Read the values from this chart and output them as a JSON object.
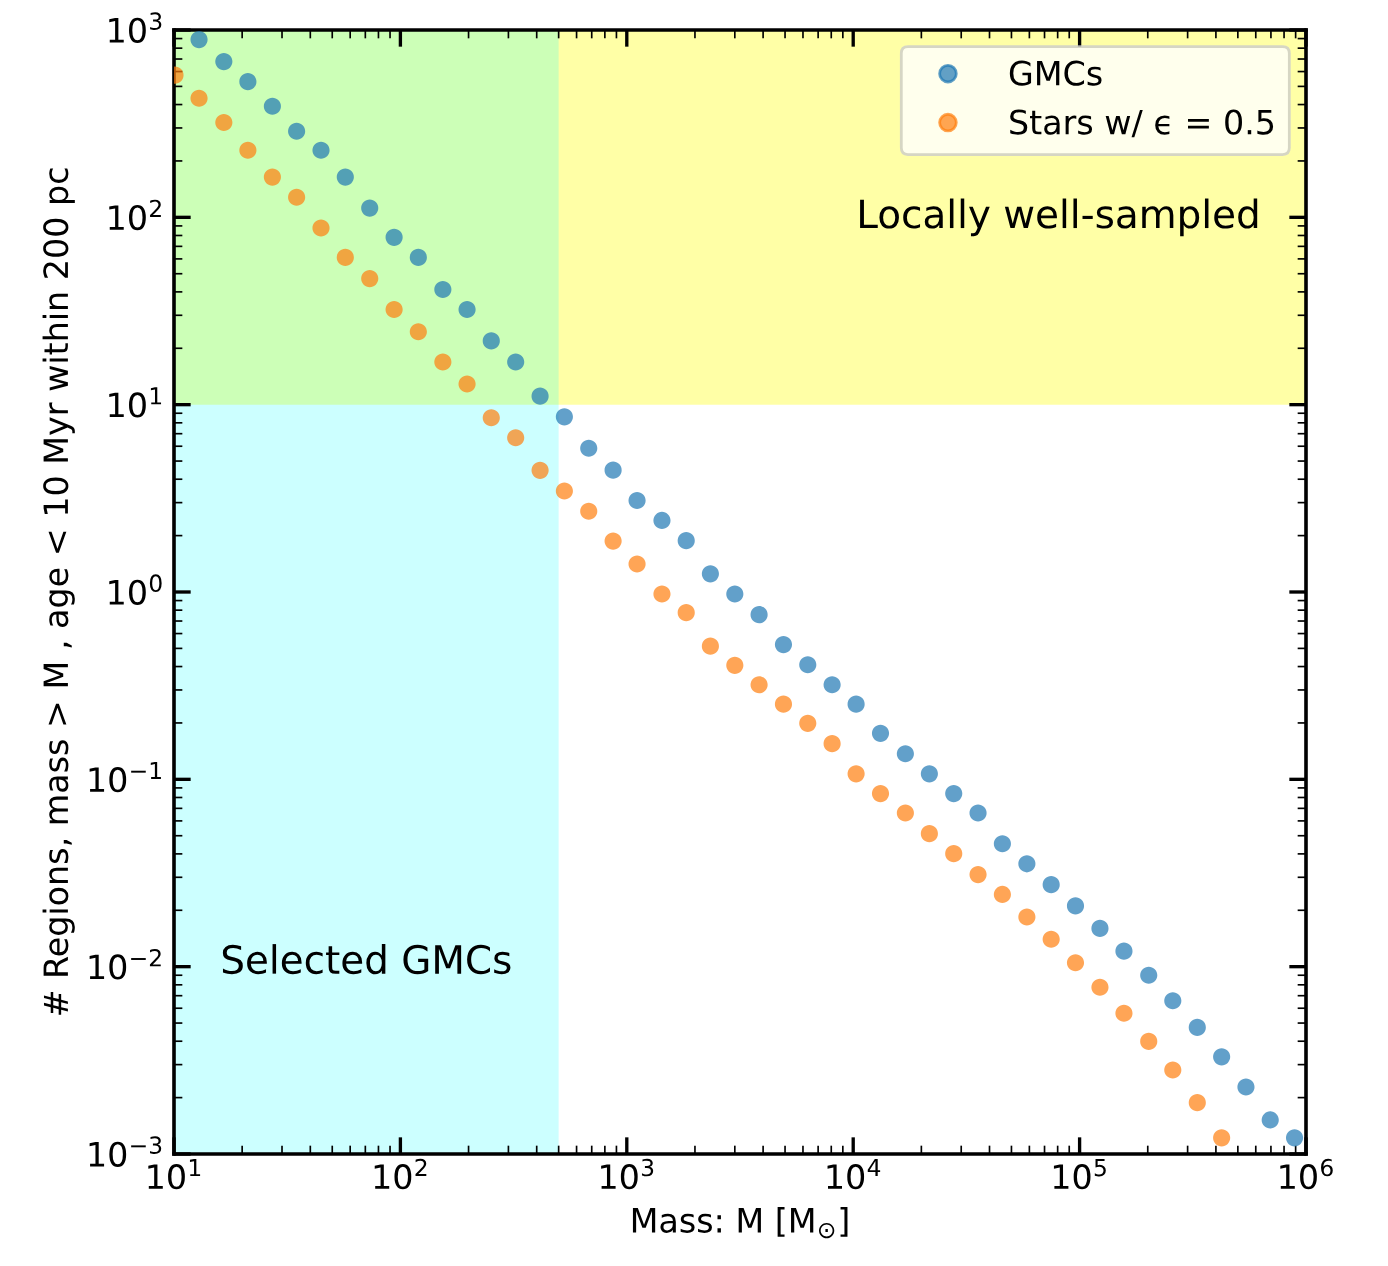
{
  "chart_data": {
    "type": "scatter",
    "xlabel": "Mass: M [M$_{⊙}$]",
    "ylabel": "# Regions, mass > M , age < 10 Myr within 200 pc",
    "log": "xy",
    "xlim": [
      10,
      1000000
    ],
    "ylim": [
      0.001,
      1000
    ],
    "xticks": [
      {
        "value": 10,
        "label": "10$^{1}$"
      },
      {
        "value": 100,
        "label": "10$^{2}$"
      },
      {
        "value": 1000,
        "label": "10$^{3}$"
      },
      {
        "value": 10000,
        "label": "10$^{4}$"
      },
      {
        "value": 100000,
        "label": "10$^{5}$"
      },
      {
        "value": 1000000,
        "label": "10$^{6}$"
      }
    ],
    "yticks": [
      {
        "value": 0.001,
        "label": "10$^{−3}$"
      },
      {
        "value": 0.01,
        "label": "10$^{−2}$"
      },
      {
        "value": 0.1,
        "label": "10$^{−1}$"
      },
      {
        "value": 1,
        "label": "10$^{0}$"
      },
      {
        "value": 10,
        "label": "10$^{1}$"
      },
      {
        "value": 100,
        "label": "10$^{2}$"
      },
      {
        "value": 1000,
        "label": "10$^{3}$"
      }
    ],
    "grid": false,
    "legend": "top right",
    "marker": "circle",
    "bands": [
      {
        "axis": "y",
        "from": 10,
        "to": 1000,
        "label": "Locally well-sampled",
        "color": "#ffff00"
      },
      {
        "axis": "x",
        "from": 10,
        "to": 500,
        "label": "Selected GMCs",
        "color": "#00ffff"
      }
    ],
    "series": [
      {
        "name": "GMCs",
        "color": "#1f77b4",
        "x": [
          12.9,
          16.6,
          21.2,
          27.2,
          34.8,
          44.6,
          57.1,
          73.2,
          93.8,
          120,
          154,
          197,
          252,
          323,
          414,
          530,
          679,
          870,
          1110,
          1430,
          1830,
          2340,
          3000,
          3840,
          4920,
          6300,
          8070,
          10300,
          13200,
          17000,
          21700,
          27800,
          35600,
          45600,
          58500,
          74900,
          95900,
          123000,
          157000,
          202000,
          258000,
          331000,
          424000,
          543000,
          695000,
          890000
        ],
        "values": [
          889,
          678,
          530,
          392,
          288,
          228,
          164,
          112,
          78.2,
          61.1,
          41.2,
          32.2,
          21.9,
          16.9,
          11.1,
          8.61,
          5.85,
          4.47,
          3.08,
          2.41,
          1.88,
          1.25,
          0.975,
          0.757,
          0.524,
          0.409,
          0.32,
          0.252,
          0.176,
          0.137,
          0.107,
          0.0839,
          0.0661,
          0.0453,
          0.0354,
          0.0274,
          0.0211,
          0.016,
          0.0121,
          0.009,
          0.00658,
          0.00474,
          0.0033,
          0.00228,
          0.00152,
          0.00122
        ]
      },
      {
        "name": "Stars w/ ϵ = 0.5",
        "color": "#ff7f0e",
        "x": [
          10.1,
          12.9,
          16.6,
          21.2,
          27.2,
          34.8,
          44.6,
          57.1,
          73.2,
          93.8,
          120,
          154,
          197,
          252,
          323,
          414,
          530,
          679,
          870,
          1110,
          1430,
          1830,
          2340,
          3000,
          3840,
          4920,
          6300,
          8070,
          10300,
          13200,
          17000,
          21700,
          27800,
          35600,
          45600,
          58500,
          74900,
          95900,
          123000,
          157000,
          202000,
          258000,
          331000,
          424000
        ],
        "values": [
          574,
          432,
          321,
          228,
          164,
          128,
          87.7,
          61.1,
          47.1,
          32.2,
          24.5,
          16.9,
          12.9,
          8.52,
          6.66,
          4.46,
          3.46,
          2.7,
          1.87,
          1.41,
          0.975,
          0.776,
          0.514,
          0.406,
          0.32,
          0.252,
          0.199,
          0.155,
          0.107,
          0.0839,
          0.0661,
          0.0513,
          0.0401,
          0.031,
          0.0243,
          0.0184,
          0.014,
          0.0105,
          0.00776,
          0.00564,
          0.00399,
          0.00281,
          0.00188,
          0.00122
        ]
      }
    ]
  }
}
